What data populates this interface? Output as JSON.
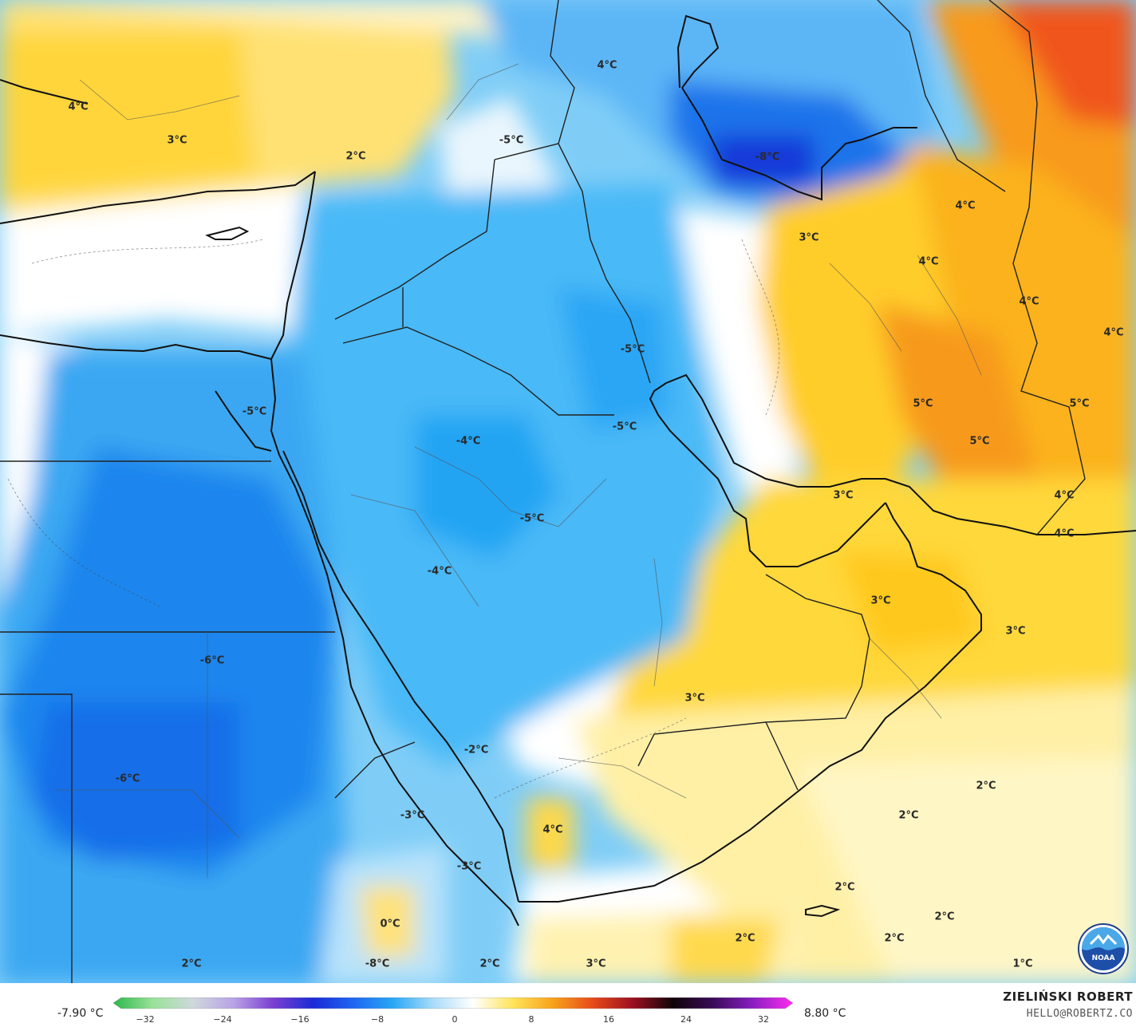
{
  "map": {
    "region": "Middle East / Arabian Peninsula",
    "variable_unit": "°C",
    "temperature_labels": [
      {
        "text": "4°C"
      },
      {
        "text": "3°C"
      },
      {
        "text": "2°C"
      },
      {
        "text": "4°C"
      },
      {
        "text": "-5°C"
      },
      {
        "text": "-8°C"
      },
      {
        "text": "3°C"
      },
      {
        "text": "4°C"
      },
      {
        "text": "4°C"
      },
      {
        "text": "4°C"
      },
      {
        "text": "4°C"
      },
      {
        "text": "-5°C"
      },
      {
        "text": "-5°C"
      },
      {
        "text": "-5°C"
      },
      {
        "text": "-4°C"
      },
      {
        "text": "5°C"
      },
      {
        "text": "5°C"
      },
      {
        "text": "5°C"
      },
      {
        "text": "-5°C"
      },
      {
        "text": "3°C"
      },
      {
        "text": "4°C"
      },
      {
        "text": "4°C"
      },
      {
        "text": "-4°C"
      },
      {
        "text": "3°C"
      },
      {
        "text": "3°C"
      },
      {
        "text": "-6°C"
      },
      {
        "text": "3°C"
      },
      {
        "text": "-2°C"
      },
      {
        "text": "-6°C"
      },
      {
        "text": "2°C"
      },
      {
        "text": "-3°C"
      },
      {
        "text": "2°C"
      },
      {
        "text": "4°C"
      },
      {
        "text": "-3°C"
      },
      {
        "text": "2°C"
      },
      {
        "text": "2°C"
      },
      {
        "text": "0°C"
      },
      {
        "text": "2°C"
      },
      {
        "text": "2°C"
      },
      {
        "text": "2°C"
      },
      {
        "text": "-8°C"
      },
      {
        "text": "2°C"
      },
      {
        "text": "3°C"
      },
      {
        "text": "1°C"
      }
    ]
  },
  "legend": {
    "min_value": "-7.90 °C",
    "max_value": "8.80 °C",
    "ticks": [
      "−32",
      "−24",
      "−16",
      "−8",
      "0",
      "8",
      "16",
      "24",
      "32"
    ],
    "colors": [
      "#2db84a",
      "#9be29a",
      "#cfd8dc",
      "#b9a3e6",
      "#7a3fd0",
      "#1b2bd6",
      "#1e66f2",
      "#29a8f5",
      "#a9dcf8",
      "#ffffff",
      "#ffe45a",
      "#f7a21c",
      "#e84a1a",
      "#9b1020",
      "#100408",
      "#3a0b58",
      "#8a1fc2",
      "#ff2bf0"
    ]
  },
  "credits": {
    "author": "ZIELIŃSKI ROBERT",
    "email": "HELLO@ROBERTZ.CO",
    "logo_text": "NOAA",
    "logo_icon": "noaa-logo-icon"
  }
}
